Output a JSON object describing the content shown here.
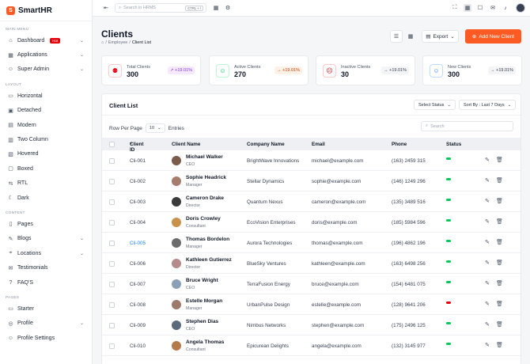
{
  "brand": {
    "name": "SmartHR"
  },
  "topbar": {
    "search_placeholder": "Search in HRMS",
    "shortcut": "CTRL + /"
  },
  "sidebar": {
    "main_menu": "MAIN MENU",
    "dashboard": "Dashboard",
    "hot": "Hot",
    "applications": "Applications",
    "super_admin": "Super Admin",
    "layout": "LAYOUT",
    "horizontal": "Horizontal",
    "detached": "Detached",
    "modern": "Modern",
    "two_column": "Two Column",
    "hovered": "Hovered",
    "boxed": "Boxed",
    "rtl": "RTL",
    "dark": "Dark",
    "content": "CONTENT",
    "pages": "Pages",
    "blogs": "Blogs",
    "locations": "Locations",
    "testimonials": "Testimonials",
    "faqs": "FAQ'S",
    "pages_section": "PAGES",
    "starter": "Starter",
    "profile": "Profile",
    "profile_settings": "Profile Settings"
  },
  "page": {
    "title": "Clients",
    "crumb_employee": "Employee",
    "crumb_current": "Client List",
    "export": "Export",
    "add_new": "Add New Client"
  },
  "stats": [
    {
      "label": "Total Clients",
      "value": "300",
      "change": "+19.01%",
      "color": "#e7000b"
    },
    {
      "label": "Active Clients",
      "value": "270",
      "change": "+19.01%",
      "color": "#03c95a"
    },
    {
      "label": "Inactive Clients",
      "value": "30",
      "change": "+19.01%",
      "color": "#e7000b"
    },
    {
      "label": "New Clients",
      "value": "300",
      "change": "+19.01%",
      "color": "#3b82f6"
    }
  ],
  "list": {
    "title": "Client List",
    "select_status": "Select Status",
    "sort_by": "Sort By : Last 7 Days",
    "rows_per_page": "Row Per Page",
    "rpp_value": "10",
    "entries": "Entries",
    "search_placeholder": "Search",
    "headers": {
      "id": "Client ID",
      "name": "Client Name",
      "company": "Company Name",
      "email": "Email",
      "phone": "Phone",
      "status": "Status"
    }
  },
  "rows": [
    {
      "id": "Cli-001",
      "name": "Michael Walker",
      "role": "CEO",
      "company": "BrightWave Innovations",
      "email": "michael@example.com",
      "phone": "(163) 2459 315",
      "status": "Active"
    },
    {
      "id": "Cli-002",
      "name": "Sophie Headrick",
      "role": "Manager",
      "company": "Stellar Dynamics",
      "email": "sophie@example.com",
      "phone": "(146) 1249 296",
      "status": "Active"
    },
    {
      "id": "Cli-003",
      "name": "Cameron Drake",
      "role": "Director",
      "company": "Quantum Nexus",
      "email": "cameron@example.com",
      "phone": "(135) 3489 516",
      "status": "Active"
    },
    {
      "id": "Cli-004",
      "name": "Doris Crowley",
      "role": "Consultant",
      "company": "EcoVision Enterprises",
      "email": "doris@example.com",
      "phone": "(185) 5984 596",
      "status": "Active"
    },
    {
      "id": "Cli-005",
      "name": "Thomas Bordelon",
      "role": "Manager",
      "company": "Aurora Technologies",
      "email": "thomas@example.com",
      "phone": "(196) 4862 196",
      "status": "Active"
    },
    {
      "id": "Cli-006",
      "name": "Kathleen Gutierrez",
      "role": "Director",
      "company": "BlueSky Ventures",
      "email": "kathleen@example.com",
      "phone": "(163) 6498 256",
      "status": "Active"
    },
    {
      "id": "Cli-007",
      "name": "Bruce Wright",
      "role": "CEO",
      "company": "TerraFusion Energy",
      "email": "bruce@example.com",
      "phone": "(154) 6481 075",
      "status": "Active"
    },
    {
      "id": "Cli-008",
      "name": "Estelle Morgan",
      "role": "Manager",
      "company": "UrbanPulse Design",
      "email": "estelle@example.com",
      "phone": "(128) 9641 206",
      "status": "Inactive"
    },
    {
      "id": "Cli-009",
      "name": "Stephen Dias",
      "role": "CEO",
      "company": "Nimbus Networks",
      "email": "stephen@example.com",
      "phone": "(175) 2496 125",
      "status": "Active"
    },
    {
      "id": "Cli-010",
      "name": "Angela Thomas",
      "role": "Consultant",
      "company": "Epicurean Delights",
      "email": "angela@example.com",
      "phone": "(132) 3145 977",
      "status": "Active"
    }
  ],
  "colors": {
    "accent": "#fe5b24",
    "active": "#03c95a",
    "inactive": "#e7000b",
    "link": "#1b84ff"
  }
}
